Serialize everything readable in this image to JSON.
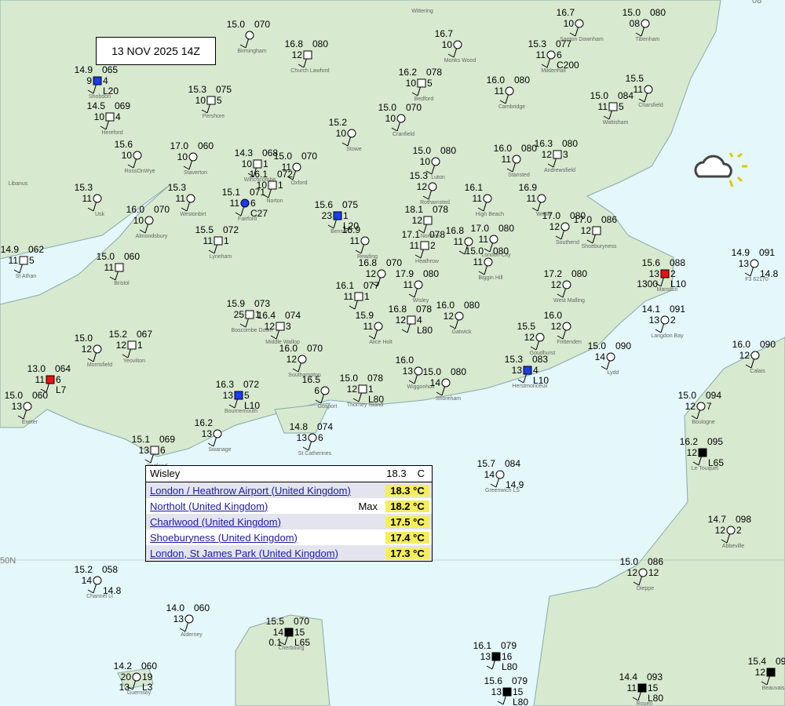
{
  "date_label": "13 NOV 2025 14Z",
  "lat_label": "50N",
  "corner_label": "08",
  "stations": [
    {
      "t": "15.0",
      "p": "070",
      "n": "Birmingham"
    },
    {
      "t": "16.8",
      "d": "12",
      "p": "080",
      "n": "Church Lawford"
    },
    {
      "n": "Wittering"
    },
    {
      "t": "16.7",
      "d": "10",
      "n": "Santon Downham"
    },
    {
      "t": "15.0",
      "d": "08",
      "p": "080",
      "n": "Tibenham"
    },
    {
      "t": "16.7",
      "d": "10",
      "n": "Monks Wood"
    },
    {
      "t": "15.3",
      "d": "11",
      "p": "077",
      "w": "6",
      "v": "C200",
      "n": "Mildenhall"
    },
    {
      "t": "14.9",
      "d": "9",
      "p": "065",
      "w": "4",
      "v": "L20",
      "n": "Shobdon"
    },
    {
      "t": "16.2",
      "d": "10",
      "p": "078",
      "w": "5",
      "n": "Bedford"
    },
    {
      "t": "16.0",
      "d": "11",
      "p": "080",
      "n": "Cambridge"
    },
    {
      "t": "15.5",
      "d": "11",
      "n": "Charsfield"
    },
    {
      "t": "15.0",
      "d": "11",
      "p": "084",
      "w": "5",
      "n": "Wattisham"
    },
    {
      "t": "14.5",
      "d": "10",
      "p": "069",
      "w": "4",
      "n": "Hereford"
    },
    {
      "t": "15.3",
      "d": "10",
      "p": "075",
      "w": "5",
      "n": "Pershore"
    },
    {
      "t": "15.0",
      "d": "10",
      "p": "070",
      "n": "Cranfield"
    },
    {
      "t": "15.2",
      "d": "10",
      "n": "Stowe"
    },
    {
      "t": "15.6",
      "d": "10",
      "n": "RossOnWye"
    },
    {
      "t": "17.0",
      "d": "10",
      "p": "060",
      "n": "Staverton"
    },
    {
      "t": "14.3",
      "d": "10",
      "p": "068",
      "w": "1",
      "n": "Winchcombe"
    },
    {
      "t": "15.0",
      "d": "11",
      "p": "070",
      "n": "Oxford"
    },
    {
      "t": "15.0",
      "d": "10",
      "p": "080",
      "n": "Luton"
    },
    {
      "t": "16.0",
      "d": "11",
      "p": "080",
      "n": "Stansted"
    },
    {
      "t": "16.3",
      "d": "12",
      "p": "080",
      "w": "3",
      "n": "Andrewsfield"
    },
    {
      "t": "16.1",
      "d": "10",
      "p": "072",
      "w": "1",
      "n": "Norton"
    },
    {
      "t": "15.1",
      "d": "11",
      "p": "071",
      "w": "6",
      "v": "C27",
      "n": "Fairford"
    },
    {
      "t": "15.3",
      "d": "12",
      "n": "Rothamsted"
    },
    {
      "t": "15.3",
      "d": "11",
      "n": "Westonbirt"
    },
    {
      "t": "15.3",
      "d": "11",
      "n": "Usk"
    },
    {
      "n": "Libanus"
    },
    {
      "t": "15.6",
      "d": "23",
      "p": "075",
      "w": "1",
      "v": "L20",
      "n": "Benson"
    },
    {
      "t": "16.1",
      "d": "11",
      "n": "High Beach"
    },
    {
      "t": "16.9",
      "d": "11",
      "n": "Writtle"
    },
    {
      "t": "16.0",
      "d": "10",
      "p": "070",
      "n": "Almondsbury"
    },
    {
      "t": "17.0",
      "d": "12",
      "p": "080",
      "n": "Southend"
    },
    {
      "t": "17.0",
      "d": "12",
      "p": "086",
      "n": "Shoeburyness"
    },
    {
      "t": "15.5",
      "d": "11",
      "p": "072",
      "w": "1",
      "n": "Lyneham"
    },
    {
      "t": "18.1",
      "d": "12",
      "p": "078",
      "n": "Northolt"
    },
    {
      "t": "17.1",
      "d": "11",
      "p": "078",
      "w": "2",
      "n": "Heathrow"
    },
    {
      "t": "16.8",
      "d": "11"
    },
    {
      "t": "17.0",
      "d": "11",
      "p": "080",
      "n": "London City"
    },
    {
      "t": "16.9",
      "d": "11",
      "n": "Reading"
    },
    {
      "t": "14.9",
      "d": "11",
      "p": "062",
      "w": "5",
      "n": "St Athan"
    },
    {
      "t": "15.0",
      "d": "11",
      "p": "060",
      "n": "Bristol"
    },
    {
      "t": "15.0",
      "d": "11",
      "p": "080",
      "n": "Biggin Hill"
    },
    {
      "t": "15.6",
      "d": "13",
      "p": "088",
      "w": "2",
      "v": "L10",
      "x": "1300",
      "n": "Manston"
    },
    {
      "t": "16.8",
      "d": "12",
      "p": "070"
    },
    {
      "t": "17.9",
      "d": "11",
      "p": "080",
      "n": "Wisley"
    },
    {
      "t": "17.2",
      "d": "12",
      "p": "080",
      "n": "West Malling"
    },
    {
      "t": "14.9",
      "d": "13",
      "p": "091",
      "v": "14.8",
      "n": "F3 62170"
    },
    {
      "t": "16.1",
      "d": "11",
      "p": "077",
      "w": "1"
    },
    {
      "t": "15.9",
      "d": "25",
      "p": "073",
      "w": "1",
      "n": "Boscombe Down"
    },
    {
      "t": "16.4",
      "d": "12",
      "p": "074",
      "w": "3",
      "n": "Middle Wallop"
    },
    {
      "t": "15.9",
      "d": "11",
      "n": "Alice Holt"
    },
    {
      "t": "16.8",
      "d": "12",
      "p": "078",
      "w": "4",
      "v": "L80"
    },
    {
      "t": "16.0",
      "d": "12",
      "p": "080",
      "n": "Gatwick"
    },
    {
      "t": "16.0",
      "d": "12",
      "n": "Frittenden"
    },
    {
      "t": "14.1",
      "d": "13",
      "p": "091",
      "w": "2",
      "n": "Langdon Bay"
    },
    {
      "t": "15.0",
      "d": "12",
      "n": "Morrisfield"
    },
    {
      "t": "15.2",
      "d": "12",
      "p": "067",
      "w": "1",
      "n": "Yeovilton"
    },
    {
      "t": "15.5",
      "d": "12",
      "n": "Goudhurst"
    },
    {
      "t": "15.0",
      "d": "14",
      "p": "090",
      "n": "Lydd"
    },
    {
      "t": "16.0",
      "d": "12",
      "p": "090",
      "n": "Calais"
    },
    {
      "t": "16.0",
      "d": "12",
      "p": "070",
      "n": "Southampton"
    },
    {
      "t": "13.0",
      "d": "11",
      "p": "064",
      "w": "6",
      "v": "L7"
    },
    {
      "t": "15.3",
      "d": "13",
      "p": "083",
      "w": "4",
      "v": "L10",
      "n": "Herstmonceux"
    },
    {
      "t": "16.0",
      "d": "13",
      "n": "Wiggonholt"
    },
    {
      "t": "15.0",
      "d": "14",
      "p": "080",
      "n": "Shoreham"
    },
    {
      "t": "16.5",
      "d": "6",
      "n": "Gosport"
    },
    {
      "t": "15.0",
      "d": "12",
      "p": "078",
      "w": "1",
      "v": "L80",
      "n": "Thorney Island"
    },
    {
      "t": "15.0",
      "d": "13",
      "p": "060",
      "n": "Exeter"
    },
    {
      "t": "16.3",
      "d": "13",
      "p": "072",
      "w": "5",
      "v": "L10",
      "n": "Bournemouth"
    },
    {
      "t": "15.0",
      "d": "12",
      "p": "094",
      "w": "7",
      "n": "Boulogne"
    },
    {
      "t": "16.2",
      "d": "13",
      "n": "Swanage"
    },
    {
      "t": "14.8",
      "d": "13",
      "p": "074",
      "w": "6",
      "n": "St Catherines"
    },
    {
      "t": "16.2",
      "d": "12",
      "p": "095",
      "v": "L65",
      "n": "Le Touquet"
    },
    {
      "t": "15.1",
      "d": "13",
      "p": "069",
      "w": "6",
      "n": "Portland"
    },
    {
      "t": "15.7",
      "d": "14",
      "p": "084",
      "v": "14.9",
      "n": "Greenwich LS"
    },
    {
      "t": "14.7",
      "d": "12",
      "p": "098",
      "w": "2",
      "n": "Abbeville"
    },
    {
      "t": "15.0",
      "d": "12",
      "p": "086",
      "w": "12",
      "n": "Dieppe"
    },
    {
      "t": "15.2",
      "d": "14",
      "p": "058",
      "v": "14.8",
      "n": "Channel Lt"
    },
    {
      "t": "14.0",
      "d": "13",
      "p": "060",
      "n": "Alderney"
    },
    {
      "t": "15.5",
      "d": "14",
      "p": "070",
      "w": "15",
      "v": "L65",
      "x": "0.1",
      "n": "Cherbourg"
    },
    {
      "t": "14.2",
      "d": "20",
      "p": "060",
      "w": "19",
      "v": "L3",
      "x": "13",
      "n": "Guernsey"
    },
    {
      "t": "16.1",
      "d": "13",
      "p": "079",
      "w": "16",
      "v": "L80"
    },
    {
      "t": "15.6",
      "d": "13",
      "p": "079",
      "w": "15",
      "v": "L80"
    },
    {
      "t": "14.4",
      "d": "11",
      "p": "093",
      "w": "15",
      "v": "L80",
      "n": "Rouen"
    },
    {
      "t": "15.4",
      "d": "12",
      "p": "09",
      "n": "Beauvais"
    }
  ],
  "popup": {
    "station": "Wisley",
    "value": "18.3",
    "unit": "C",
    "rows": [
      {
        "place": "London / Heathrow Airport (United Kingdom)",
        "value": "18.3 °C"
      },
      {
        "place": "Northolt (United Kingdom)",
        "tag": "Max",
        "value": "18.2 °C"
      },
      {
        "place": "Charlwood (United Kingdom)",
        "value": "17.5 °C"
      },
      {
        "place": "Shoeburyness (United Kingdom)",
        "value": "17.4 °C"
      },
      {
        "place": "London, St James Park (United Kingdom)",
        "value": "17.3 °C"
      }
    ]
  }
}
